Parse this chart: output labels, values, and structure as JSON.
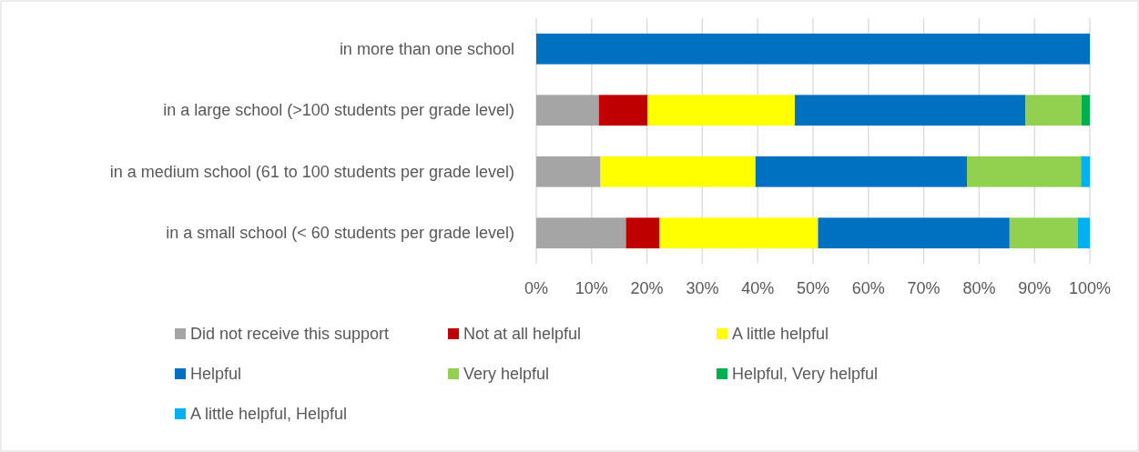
{
  "chart_data": {
    "type": "bar",
    "orientation": "horizontal",
    "stacked": true,
    "categories": [
      "in more than one school",
      "in a large school (>100 students per grade level)",
      "in a medium school (61 to 100 students per grade level)",
      "in a small school (< 60 students per grade level)"
    ],
    "series": [
      {
        "name": "Did not receive this support",
        "color": "#a5a5a5",
        "values": [
          0,
          11.3,
          11.6,
          16.2
        ]
      },
      {
        "name": "Not at all helpful",
        "color": "#c00000",
        "values": [
          0,
          8.8,
          0,
          6.1
        ]
      },
      {
        "name": "A little helpful",
        "color": "#ffff00",
        "values": [
          0,
          26.6,
          28.0,
          28.6
        ]
      },
      {
        "name": "Helpful",
        "color": "#0070c0",
        "values": [
          100,
          41.7,
          38.2,
          34.6
        ]
      },
      {
        "name": "Very helpful",
        "color": "#92d050",
        "values": [
          0,
          10.1,
          20.6,
          12.3
        ]
      },
      {
        "name": "Helpful, Very helpful",
        "color": "#00b050",
        "values": [
          0,
          1.5,
          0,
          0
        ]
      },
      {
        "name": "A little helpful, Helpful",
        "color": "#00b0f0",
        "values": [
          0,
          0,
          1.6,
          2.2
        ]
      }
    ],
    "xlim": [
      0,
      100
    ],
    "xticks": [
      {
        "value": 0,
        "label": "0%"
      },
      {
        "value": 10,
        "label": "10%"
      },
      {
        "value": 20,
        "label": "20%"
      },
      {
        "value": 30,
        "label": "30%"
      },
      {
        "value": 40,
        "label": "40%"
      },
      {
        "value": 50,
        "label": "50%"
      },
      {
        "value": 60,
        "label": "60%"
      },
      {
        "value": 70,
        "label": "70%"
      },
      {
        "value": 80,
        "label": "80%"
      },
      {
        "value": 90,
        "label": "90%"
      },
      {
        "value": 100,
        "label": "100%"
      }
    ],
    "grid": "x",
    "legend": "bottom"
  }
}
